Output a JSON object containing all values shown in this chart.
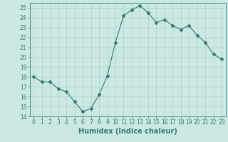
{
  "x": [
    0,
    1,
    2,
    3,
    4,
    5,
    6,
    7,
    8,
    9,
    10,
    11,
    12,
    13,
    14,
    15,
    16,
    17,
    18,
    19,
    20,
    21,
    22,
    23
  ],
  "y": [
    18,
    17.5,
    17.5,
    16.8,
    16.5,
    15.5,
    14.5,
    14.8,
    16.2,
    18.1,
    21.5,
    24.2,
    24.8,
    25.2,
    24.5,
    23.5,
    23.8,
    23.2,
    22.8,
    23.2,
    22.2,
    21.5,
    20.3,
    19.8
  ],
  "xlabel": "Humidex (Indice chaleur)",
  "ylabel": "",
  "xlim": [
    -0.5,
    23.5
  ],
  "ylim": [
    14,
    25.5
  ],
  "yticks": [
    14,
    15,
    16,
    17,
    18,
    19,
    20,
    21,
    22,
    23,
    24,
    25
  ],
  "xticks": [
    0,
    1,
    2,
    3,
    4,
    5,
    6,
    7,
    8,
    9,
    10,
    11,
    12,
    13,
    14,
    15,
    16,
    17,
    18,
    19,
    20,
    21,
    22,
    23
  ],
  "line_color": "#2e7d6e",
  "marker": "D",
  "marker_size": 2.5,
  "bg_color": "#cce8e5",
  "grid_color": "#aacfcc",
  "title_fontsize": 7,
  "label_fontsize": 7,
  "tick_fontsize": 5.5
}
